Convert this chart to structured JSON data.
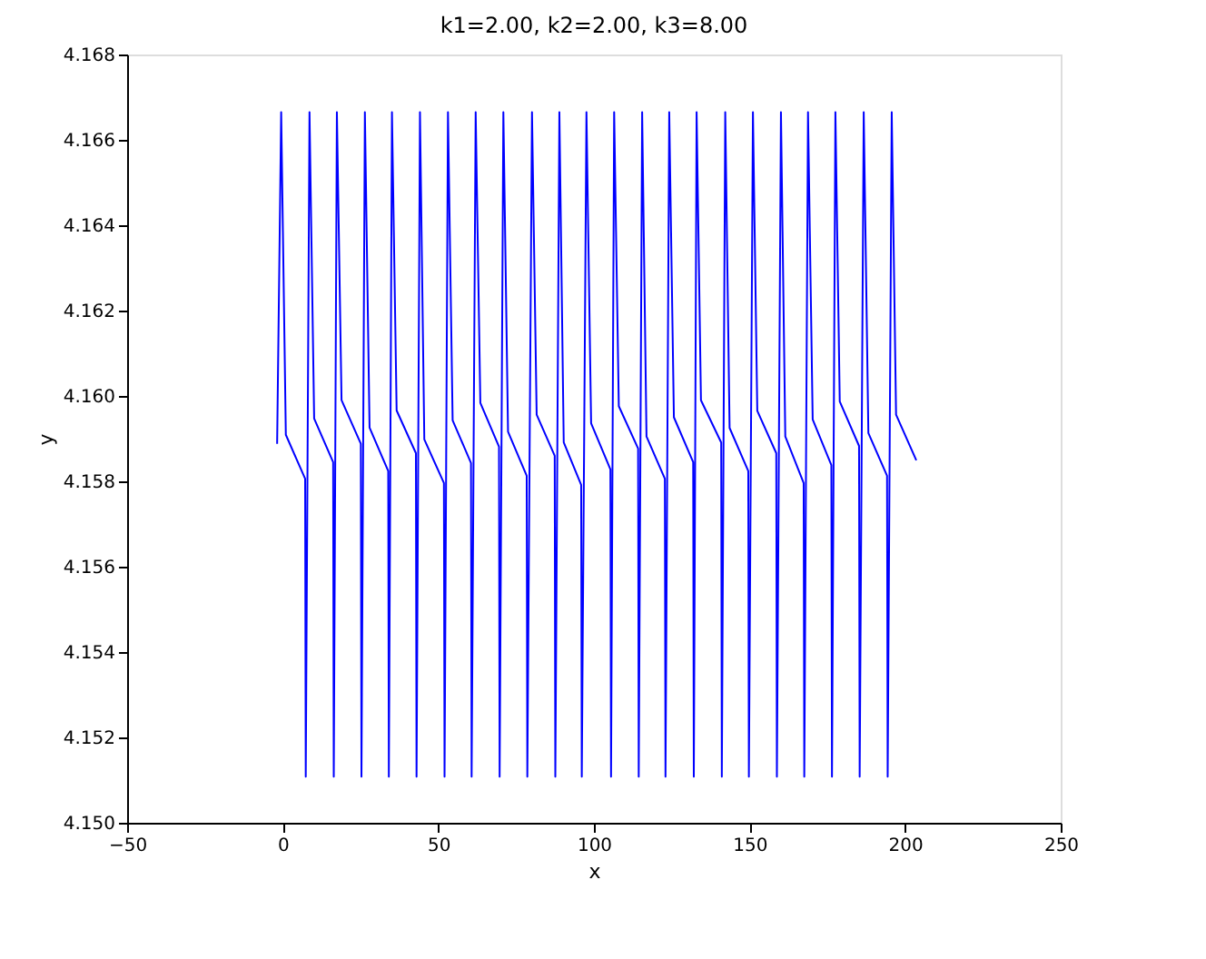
{
  "chart_data": {
    "type": "line",
    "title": "k1=2.00, k2=2.00, k3=8.00",
    "xlabel": "x",
    "ylabel": "y",
    "xlim": [
      -50,
      250
    ],
    "xticks": [
      -50,
      0,
      50,
      100,
      150,
      200,
      250
    ],
    "ylim": [
      4.15,
      4.168
    ],
    "yticks": [
      {
        "value": 4.15,
        "label": "4.150"
      },
      {
        "value": 4.152,
        "label": "4.152"
      },
      {
        "value": 4.154,
        "label": "4.154"
      },
      {
        "value": 4.156,
        "label": "4.156"
      },
      {
        "value": 4.158,
        "label": "4.158"
      },
      {
        "value": 4.16,
        "label": "4.160"
      },
      {
        "value": 4.162,
        "label": "4.162"
      },
      {
        "value": 4.164,
        "label": "4.164"
      },
      {
        "value": 4.166,
        "label": "4.166"
      },
      {
        "value": 4.168,
        "label": "4.168"
      }
    ],
    "grid": false,
    "legend": false,
    "marker": "none",
    "line_style": "solid",
    "series": [
      {
        "color": "#0000ff",
        "x": [
          -1.8,
          -0.5,
          1.0,
          7.2,
          7.4,
          8.6,
          10.1,
          16.2,
          16.4,
          17.4,
          18.9,
          25.1,
          25.3,
          26.4,
          27.9,
          33.9,
          34.1,
          35.1,
          36.6,
          42.8,
          43.0,
          44.1,
          45.5,
          51.8,
          52.0,
          53.1,
          54.6,
          60.5,
          60.7,
          62.0,
          63.5,
          69.5,
          69.7,
          70.9,
          72.4,
          78.4,
          78.6,
          80.1,
          81.6,
          87.4,
          87.6,
          88.9,
          90.3,
          95.9,
          96.1,
          97.6,
          99.1,
          105.3,
          105.5,
          106.5,
          108.0,
          114.2,
          114.4,
          115.5,
          116.9,
          122.8,
          123.0,
          124.2,
          125.7,
          131.9,
          132.1,
          133.0,
          134.4,
          140.9,
          141.1,
          142.2,
          143.6,
          149.6,
          149.8,
          151.1,
          152.5,
          158.6,
          158.8,
          160.1,
          161.5,
          167.4,
          167.6,
          168.8,
          170.3,
          176.3,
          176.5,
          177.6,
          179.0,
          185.2,
          185.4,
          186.7,
          188.2,
          194.2,
          194.4,
          195.7,
          197.1,
          203.6
        ],
        "values": [
          4.15888,
          4.16665,
          4.15909,
          4.15806,
          4.15108,
          4.16665,
          4.15947,
          4.15845,
          4.15108,
          4.16665,
          4.1599,
          4.15888,
          4.15108,
          4.16665,
          4.15926,
          4.15824,
          4.15108,
          4.16665,
          4.15966,
          4.15866,
          4.15108,
          4.16665,
          4.15898,
          4.15796,
          4.15108,
          4.16665,
          4.15943,
          4.15843,
          4.15108,
          4.16665,
          4.15984,
          4.15881,
          4.15108,
          4.16665,
          4.15916,
          4.15813,
          4.15108,
          4.16665,
          4.15956,
          4.1586,
          4.15108,
          4.16665,
          4.15891,
          4.15792,
          4.15108,
          4.16665,
          4.15936,
          4.15828,
          4.15108,
          4.16665,
          4.15976,
          4.15877,
          4.15108,
          4.16665,
          4.15905,
          4.15806,
          4.15108,
          4.16665,
          4.1595,
          4.15845,
          4.15108,
          4.16665,
          4.1599,
          4.15891,
          4.15108,
          4.16665,
          4.15925,
          4.15824,
          4.15108,
          4.16665,
          4.15965,
          4.15866,
          4.15108,
          4.16665,
          4.15905,
          4.15796,
          4.15108,
          4.16665,
          4.15945,
          4.15838,
          4.15108,
          4.16665,
          4.15987,
          4.15883,
          4.15108,
          4.16665,
          4.15913,
          4.15813,
          4.15108,
          4.16665,
          4.15956,
          4.15849
        ]
      }
    ]
  }
}
